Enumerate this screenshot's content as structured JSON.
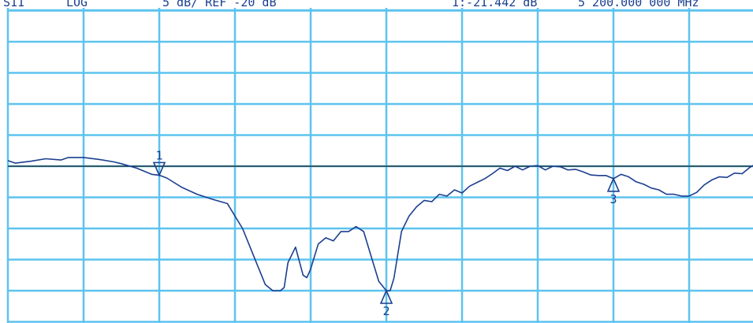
{
  "header": {
    "channel": "S11",
    "format": "LOG",
    "scale_ref": "5 dB/ REF -20 dB",
    "marker_readout": "1:-21.442 dB",
    "marker_freq": "5 200.000 000 MHz"
  },
  "colors": {
    "background": "#ffffff",
    "grid": "#5dc3ef",
    "trace": "#1b3f8f",
    "reference_line": "#1a1a1a"
  },
  "chart_data": {
    "type": "line",
    "title": "",
    "xlabel": "",
    "ylabel": "",
    "scale_db_per_div": 5,
    "reference_db": -20,
    "xlim": [
      0,
      10
    ],
    "ylim": [
      -40,
      -9.5
    ],
    "grid": true,
    "series": [
      {
        "x": [
          0,
          0.1,
          0.3,
          0.5,
          0.7,
          0.8,
          1.0,
          1.2,
          1.4,
          1.5,
          1.7,
          1.9,
          2.0,
          2.1,
          2.3,
          2.5,
          2.7,
          2.9,
          3.1,
          3.2,
          3.3,
          3.4,
          3.5,
          3.6,
          3.65,
          3.7,
          3.8,
          3.9,
          3.95,
          4.0,
          4.1,
          4.2,
          4.3,
          4.4,
          4.5,
          4.6,
          4.7,
          4.8,
          4.9,
          5.0,
          5.05,
          5.1,
          5.2,
          5.3,
          5.4,
          5.5,
          5.6,
          5.7,
          5.8,
          5.9,
          6.0,
          6.1,
          6.2,
          6.3,
          6.4,
          6.5,
          6.6,
          6.7,
          6.8,
          6.9,
          7.0,
          7.1,
          7.2,
          7.3,
          7.4,
          7.5,
          7.6,
          7.7,
          7.8,
          7.9,
          8.0,
          8.1,
          8.2,
          8.3,
          8.4,
          8.5,
          8.6,
          8.7,
          8.8,
          8.9,
          9.0,
          9.1,
          9.2,
          9.3,
          9.4,
          9.5,
          9.6,
          9.7,
          9.8,
          9.9,
          10.0
        ],
        "y": [
          -19.1,
          -19.5,
          -19.2,
          -18.8,
          -19.0,
          -18.6,
          -18.6,
          -18.9,
          -19.3,
          -19.6,
          -20.3,
          -21.3,
          -21.44,
          -21.9,
          -23.4,
          -24.5,
          -25.3,
          -26.0,
          -30.0,
          -33.0,
          -36.0,
          -39.0,
          -40.0,
          -40.0,
          -39.5,
          -35.5,
          -33.0,
          -37.5,
          -37.9,
          -36.5,
          -32.5,
          -31.5,
          -32.0,
          -30.5,
          -30.5,
          -29.7,
          -30.5,
          -34.5,
          -38.5,
          -40.0,
          -40.0,
          -38.0,
          -30.5,
          -28.0,
          -26.5,
          -25.5,
          -25.7,
          -24.5,
          -24.8,
          -23.8,
          -24.3,
          -23.2,
          -22.6,
          -22.0,
          -21.2,
          -20.3,
          -20.7,
          -20.0,
          -20.6,
          -20.0,
          -19.9,
          -20.6,
          -20.0,
          -20.1,
          -20.6,
          -20.5,
          -20.9,
          -21.4,
          -21.5,
          -21.5,
          -22.0,
          -21.3,
          -21.7,
          -22.5,
          -22.9,
          -23.5,
          -23.8,
          -24.5,
          -24.5,
          -24.8,
          -24.8,
          -24.2,
          -23.0,
          -22.2,
          -21.7,
          -21.8,
          -21.1,
          -21.2,
          -20.2,
          -19.5,
          -18.7
        ]
      }
    ],
    "markers": [
      {
        "label": "1",
        "x": 2.0,
        "y": -21.44,
        "placement": "above"
      },
      {
        "label": "2",
        "x": 5.0,
        "y": -40.0,
        "placement": "below"
      },
      {
        "label": "3",
        "x": 8.0,
        "y": -22.0,
        "placement": "below"
      }
    ]
  }
}
